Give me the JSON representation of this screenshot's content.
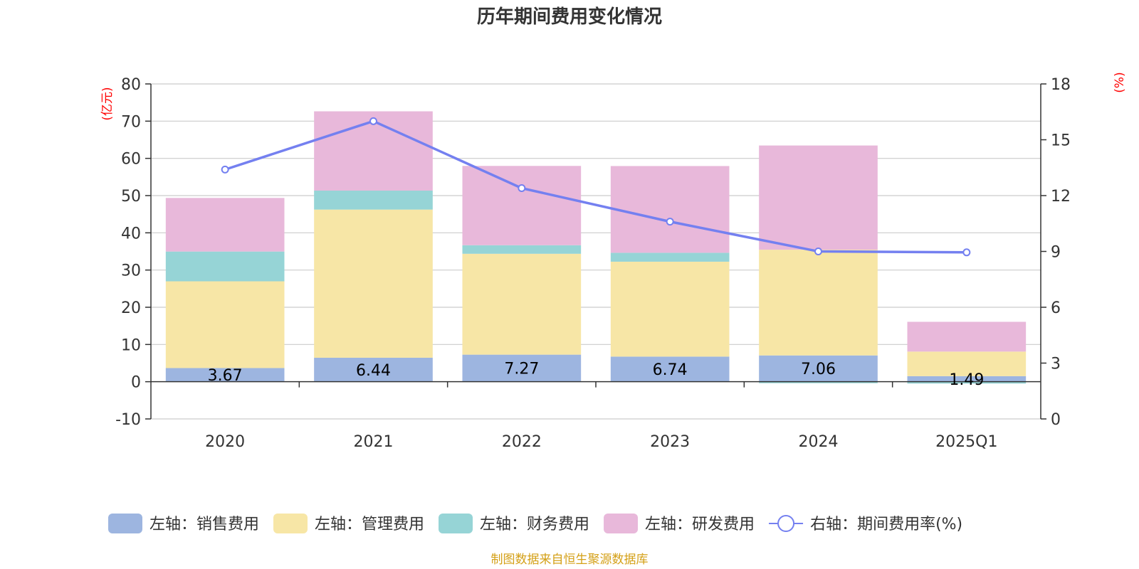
{
  "chart_data": {
    "type": "bar",
    "stacked": true,
    "title": "历年期间费用变化情况",
    "categories": [
      "2020",
      "2021",
      "2022",
      "2023",
      "2024",
      "2025Q1"
    ],
    "left_axis": {
      "unit": "(亿元)",
      "ylim": [
        -10,
        80
      ],
      "ticks": [
        80,
        70,
        60,
        50,
        40,
        30,
        20,
        10,
        0,
        -10
      ]
    },
    "right_axis": {
      "unit": "(%)",
      "ylim": [
        0,
        18
      ],
      "ticks": [
        18,
        15,
        12,
        9,
        6,
        3,
        0
      ]
    },
    "series": [
      {
        "name": "左轴：销售费用",
        "color": "#9db5e0",
        "values": [
          3.67,
          6.44,
          7.27,
          6.74,
          7.06,
          1.49
        ],
        "labels": [
          "3.67",
          "6.44",
          "7.27",
          "6.74",
          "7.06",
          "1.49"
        ]
      },
      {
        "name": "左轴：管理费用",
        "color": "#f7e6a6",
        "values": [
          23.3,
          39.8,
          27.1,
          25.5,
          28.4,
          6.6
        ]
      },
      {
        "name": "左轴：财务费用",
        "color": "#96d4d6",
        "values": [
          8.0,
          5.1,
          2.3,
          2.4,
          -0.4,
          -0.5
        ]
      },
      {
        "name": "左轴：研发费用",
        "color": "#e8b8da",
        "values": [
          14.4,
          21.3,
          21.3,
          23.3,
          28.0,
          8.0
        ]
      }
    ],
    "line": {
      "name": "右轴：期间费用率(%)",
      "color": "#7480f0",
      "values": [
        13.4,
        16.0,
        12.4,
        10.6,
        9.0,
        8.95
      ]
    }
  },
  "legend": [
    {
      "label": "左轴：销售费用",
      "color": "#9db5e0",
      "kind": "rect"
    },
    {
      "label": "左轴：管理费用",
      "color": "#f7e6a6",
      "kind": "rect"
    },
    {
      "label": "左轴：财务费用",
      "color": "#96d4d6",
      "kind": "rect"
    },
    {
      "label": "左轴：研发费用",
      "color": "#e8b8da",
      "kind": "rect"
    },
    {
      "label": "右轴：期间费用率(%)",
      "color": "#7480f0",
      "kind": "line"
    }
  ],
  "source": "制图数据来自恒生聚源数据库"
}
